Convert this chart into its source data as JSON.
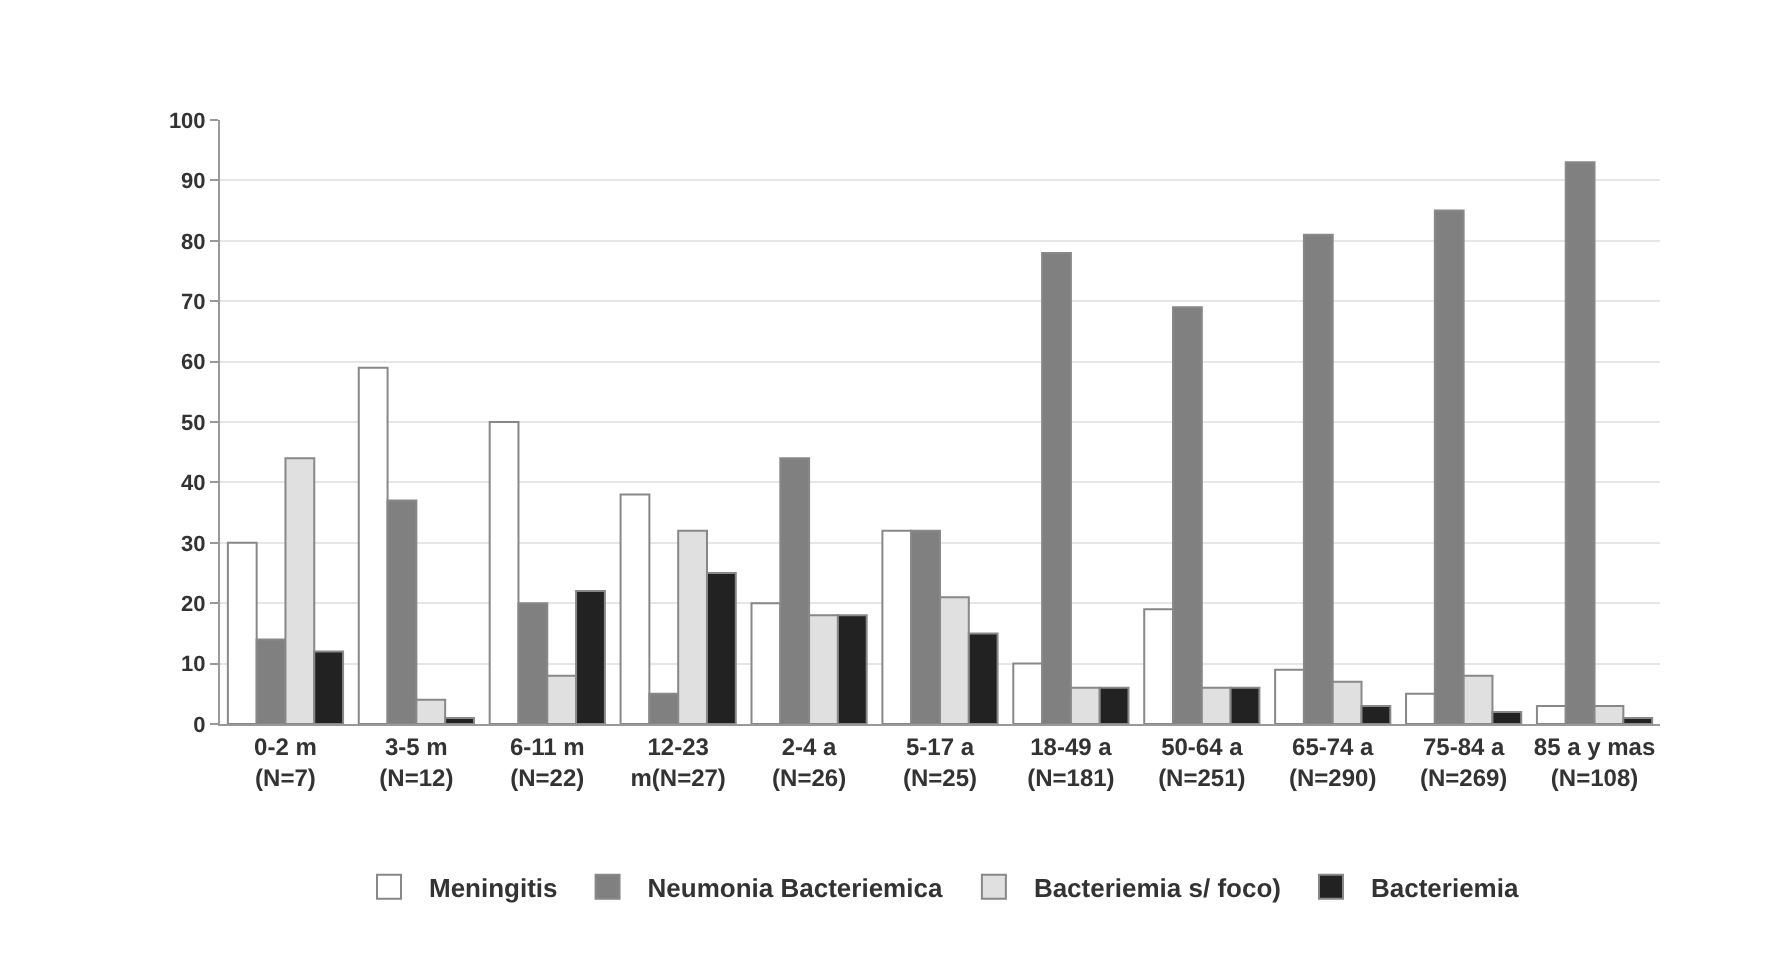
{
  "chart_data": {
    "type": "bar",
    "categories": [
      "0-2 m\n(N=7)",
      "3-5 m\n(N=12)",
      "6-11 m\n(N=22)",
      "12-23\nm(N=27)",
      "2-4 a\n(N=26)",
      "5-17 a\n(N=25)",
      "18-49 a\n(N=181)",
      "50-64 a\n(N=251)",
      "65-74 a\n(N=290)",
      "75-84 a\n(N=269)",
      "85 a y mas\n(N=108)"
    ],
    "series": [
      {
        "name": "Meningitis",
        "color": "#ffffff",
        "values": [
          30,
          59,
          50,
          38,
          20,
          32,
          10,
          19,
          9,
          5,
          3
        ]
      },
      {
        "name": "Neumonia Bacteriemica",
        "color": "#808080",
        "values": [
          14,
          37,
          20,
          5,
          44,
          32,
          78,
          69,
          81,
          85,
          93
        ]
      },
      {
        "name": "Bacteriemia s/ foco)",
        "color": "#e0e0e0",
        "values": [
          44,
          4,
          8,
          32,
          18,
          21,
          6,
          6,
          7,
          8,
          3
        ]
      },
      {
        "name": "Bacteriemia",
        "color": "#222222",
        "values": [
          12,
          1,
          22,
          25,
          18,
          15,
          6,
          6,
          3,
          2,
          1
        ]
      }
    ],
    "ylim": [
      0,
      100
    ],
    "yticks": [
      0,
      10,
      20,
      30,
      40,
      50,
      60,
      70,
      80,
      90,
      100
    ],
    "grid": "y",
    "legend": "bottom"
  }
}
